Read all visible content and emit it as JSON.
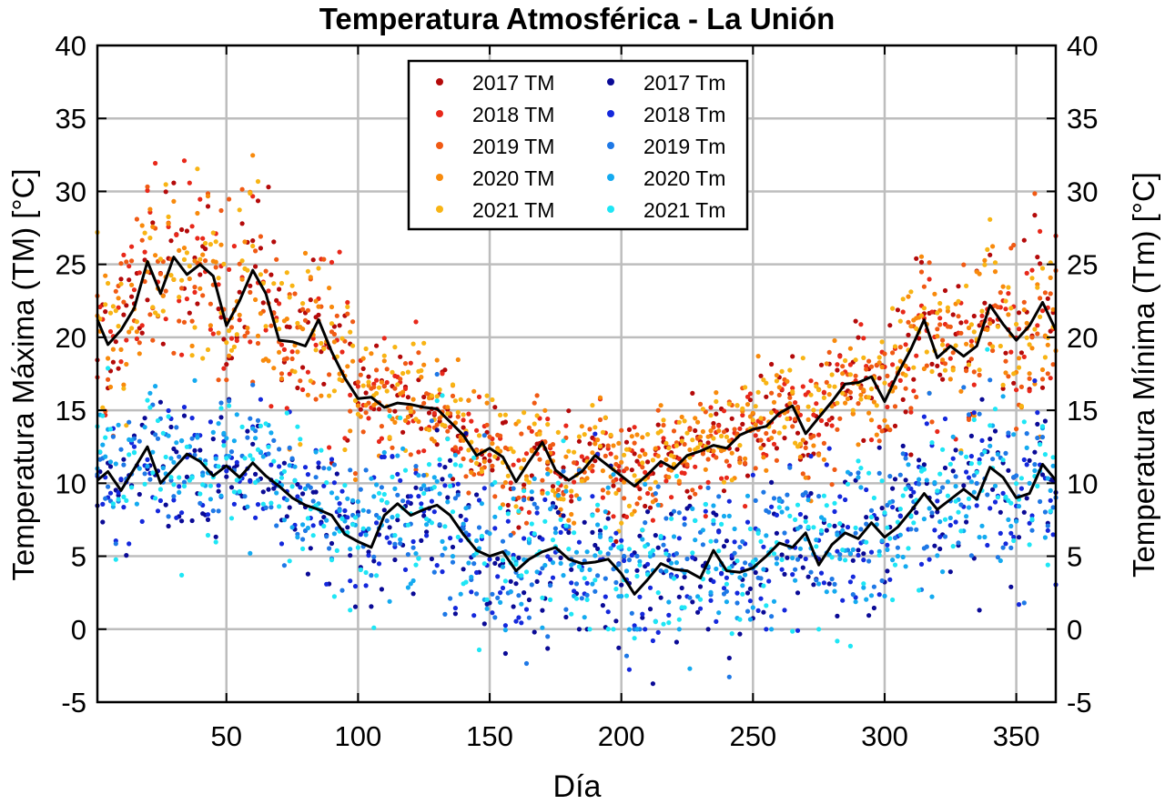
{
  "chart_data": {
    "type": "scatter",
    "title": "Temperatura Atmosférica - La Unión",
    "xlabel": "Día",
    "ylabel_left": "Temperatura Máxima (TM) [°C]",
    "ylabel_right": "Temperatura Mínima (Tm) [°C]",
    "xlim": [
      1,
      365
    ],
    "ylim": [
      -5,
      40
    ],
    "xticks": [
      50,
      100,
      150,
      200,
      250,
      300,
      350
    ],
    "xtick_labels": [
      "50",
      "100",
      "150",
      "200",
      "250",
      "300",
      "350"
    ],
    "yticks": [
      -5,
      0,
      5,
      10,
      15,
      20,
      25,
      30,
      35,
      40
    ],
    "ytick_labels": [
      "-5",
      "0",
      "5",
      "10",
      "15",
      "20",
      "25",
      "30",
      "35",
      "40"
    ],
    "grid": true,
    "legend_position": "top-center",
    "series": [
      {
        "name": "2017 TM",
        "color": "#b40a0a",
        "group": "max",
        "seed": 11,
        "offset": 0.3
      },
      {
        "name": "2018 TM",
        "color": "#e8281a",
        "group": "max",
        "seed": 23,
        "offset": 0.2
      },
      {
        "name": "2019 TM",
        "color": "#f05a14",
        "group": "max",
        "seed": 37,
        "offset": -0.1
      },
      {
        "name": "2020 TM",
        "color": "#f88a0c",
        "group": "max",
        "seed": 41,
        "offset": 0.1
      },
      {
        "name": "2021 TM",
        "color": "#f8b414",
        "group": "max",
        "seed": 53,
        "offset": 0.5
      },
      {
        "name": "2017 Tm",
        "color": "#0a0a96",
        "group": "min",
        "seed": 61,
        "offset": -0.3
      },
      {
        "name": "2018 Tm",
        "color": "#1428dc",
        "group": "min",
        "seed": 73,
        "offset": -0.1
      },
      {
        "name": "2019 Tm",
        "color": "#1e78e6",
        "group": "min",
        "seed": 89,
        "offset": 0.2
      },
      {
        "name": "2020 Tm",
        "color": "#14aaf0",
        "group": "min",
        "seed": 97,
        "offset": 0.3
      },
      {
        "name": "2021 Tm",
        "color": "#1ee6f5",
        "group": "min",
        "seed": 101,
        "offset": 0.4
      }
    ],
    "mean_line_max": {
      "color": "#000000",
      "x": [
        1,
        5,
        10,
        15,
        20,
        25,
        30,
        35,
        40,
        45,
        50,
        55,
        60,
        65,
        70,
        75,
        80,
        85,
        90,
        95,
        100,
        105,
        110,
        115,
        120,
        125,
        130,
        135,
        140,
        145,
        150,
        155,
        160,
        165,
        170,
        175,
        180,
        185,
        190,
        195,
        200,
        205,
        210,
        215,
        220,
        225,
        230,
        235,
        240,
        245,
        250,
        255,
        260,
        265,
        270,
        275,
        280,
        285,
        290,
        295,
        300,
        305,
        310,
        315,
        320,
        325,
        330,
        335,
        340,
        345,
        350,
        355,
        360,
        365
      ],
      "y": [
        21.2,
        19.5,
        20.5,
        22.0,
        25.2,
        23.0,
        25.5,
        24.3,
        25.0,
        24.2,
        20.8,
        22.5,
        24.6,
        23.0,
        19.8,
        19.7,
        19.4,
        21.2,
        19.0,
        17.2,
        15.8,
        15.9,
        15.2,
        15.5,
        15.4,
        15.2,
        15.1,
        14.2,
        13.3,
        11.9,
        12.4,
        11.8,
        10.1,
        11.5,
        12.8,
        10.9,
        10.2,
        10.8,
        11.9,
        11.2,
        10.5,
        9.8,
        10.6,
        11.5,
        11.0,
        11.9,
        12.2,
        12.6,
        12.4,
        13.3,
        13.7,
        13.9,
        14.8,
        15.3,
        13.4,
        14.5,
        15.6,
        16.8,
        16.9,
        17.3,
        15.6,
        17.5,
        19.2,
        21.2,
        18.6,
        19.4,
        18.7,
        19.4,
        22.2,
        20.9,
        19.8,
        20.8,
        22.4,
        20.5
      ]
    },
    "mean_line_min": {
      "color": "#000000",
      "x": [
        1,
        5,
        10,
        15,
        20,
        25,
        30,
        35,
        40,
        45,
        50,
        55,
        60,
        65,
        70,
        75,
        80,
        85,
        90,
        95,
        100,
        105,
        110,
        115,
        120,
        125,
        130,
        135,
        140,
        145,
        150,
        155,
        160,
        165,
        170,
        175,
        180,
        185,
        190,
        195,
        200,
        205,
        210,
        215,
        220,
        225,
        230,
        235,
        240,
        245,
        250,
        255,
        260,
        265,
        270,
        275,
        280,
        285,
        290,
        295,
        300,
        305,
        310,
        315,
        320,
        325,
        330,
        335,
        340,
        345,
        350,
        355,
        360,
        365
      ],
      "y": [
        10.2,
        10.8,
        9.5,
        11.0,
        12.5,
        10.0,
        11.0,
        12.0,
        11.5,
        10.5,
        11.2,
        10.4,
        11.4,
        10.5,
        9.8,
        9.0,
        8.5,
        8.2,
        7.8,
        6.5,
        6.0,
        5.6,
        7.8,
        8.6,
        7.8,
        8.2,
        8.5,
        7.8,
        6.5,
        5.4,
        5.0,
        5.3,
        4.0,
        4.8,
        5.3,
        5.6,
        4.8,
        4.5,
        4.6,
        4.8,
        3.8,
        2.4,
        3.4,
        4.5,
        4.1,
        4.0,
        3.5,
        5.4,
        4.0,
        3.9,
        4.2,
        5.0,
        5.9,
        5.6,
        6.6,
        4.4,
        5.8,
        6.6,
        6.2,
        7.3,
        6.3,
        7.0,
        8.1,
        9.3,
        8.2,
        8.9,
        9.6,
        8.9,
        11.1,
        10.4,
        9.0,
        9.3,
        11.3,
        10.2
      ]
    }
  }
}
